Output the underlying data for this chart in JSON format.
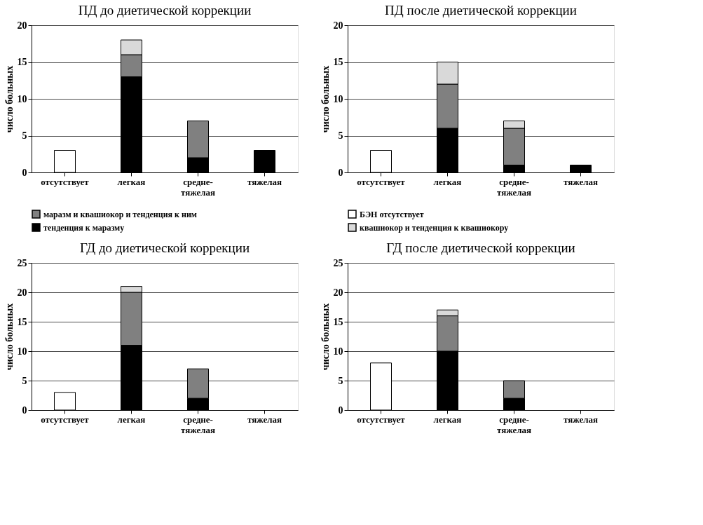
{
  "chart_data": [
    {
      "type": "bar",
      "stacked": true,
      "title": "ПД до диетической коррекции",
      "ylabel": "число больных",
      "categories": [
        "отсутствует",
        "легкая",
        "средне-тяжелая",
        "тяжелая"
      ],
      "ylim": [
        0,
        20
      ],
      "yticks": [
        0,
        5,
        10,
        15,
        20
      ],
      "grid": "y",
      "legend": "bottom",
      "series": [
        {
          "name": "тенденция к маразму",
          "color": "#000000",
          "values": [
            0,
            13,
            2,
            3
          ]
        },
        {
          "name": "маразм и квашиокор и тенденция к ним",
          "color": "#808080",
          "values": [
            0,
            3,
            5,
            0
          ]
        },
        {
          "color": "#d9d9d9",
          "values": [
            0,
            2,
            0,
            0
          ]
        },
        {
          "color": "#ffffff",
          "values": [
            3,
            0,
            0,
            0
          ]
        }
      ]
    },
    {
      "type": "bar",
      "stacked": true,
      "title": "ПД после диетической коррекции",
      "ylabel": "число больных",
      "categories": [
        "отсутствует",
        "легкая",
        "средне-тяжелая",
        "тяжелая"
      ],
      "ylim": [
        0,
        20
      ],
      "yticks": [
        0,
        5,
        10,
        15,
        20
      ],
      "grid": "y",
      "legend": "bottom",
      "series": [
        {
          "color": "#000000",
          "values": [
            0,
            6,
            1,
            1
          ]
        },
        {
          "color": "#808080",
          "values": [
            0,
            6,
            5,
            0
          ]
        },
        {
          "name": "квашиокор и тенденция к квашиокору",
          "color": "#d9d9d9",
          "values": [
            0,
            3,
            1,
            0
          ]
        },
        {
          "name": "БЭН отсутствует",
          "color": "#ffffff",
          "values": [
            3,
            0,
            0,
            0
          ]
        }
      ]
    },
    {
      "type": "bar",
      "stacked": true,
      "title": "ГД до диетической коррекции",
      "ylabel": "число больных",
      "categories": [
        "отсутствует",
        "легкая",
        "средне-тяжелая",
        "тяжелая"
      ],
      "ylim": [
        0,
        25
      ],
      "yticks": [
        0,
        5,
        10,
        15,
        20,
        25
      ],
      "grid": "y",
      "series": [
        {
          "color": "#000000",
          "values": [
            0,
            11,
            2,
            0
          ]
        },
        {
          "color": "#808080",
          "values": [
            0,
            9,
            5,
            0
          ]
        },
        {
          "color": "#d9d9d9",
          "values": [
            0,
            1,
            0,
            0
          ]
        },
        {
          "color": "#ffffff",
          "values": [
            3,
            0,
            0,
            0
          ]
        }
      ]
    },
    {
      "type": "bar",
      "stacked": true,
      "title": "ГД после диетической коррекции",
      "ylabel": "число больных",
      "categories": [
        "отсутствует",
        "легкая",
        "средне-тяжелая",
        "тяжелая"
      ],
      "ylim": [
        0,
        25
      ],
      "yticks": [
        0,
        5,
        10,
        15,
        20,
        25
      ],
      "grid": "y",
      "series": [
        {
          "color": "#000000",
          "values": [
            0,
            10,
            2,
            0
          ]
        },
        {
          "color": "#808080",
          "values": [
            0,
            6,
            3,
            0
          ]
        },
        {
          "color": "#d9d9d9",
          "values": [
            0,
            1,
            0,
            0
          ]
        },
        {
          "color": "#ffffff",
          "values": [
            8,
            0,
            0,
            0
          ]
        }
      ]
    }
  ]
}
